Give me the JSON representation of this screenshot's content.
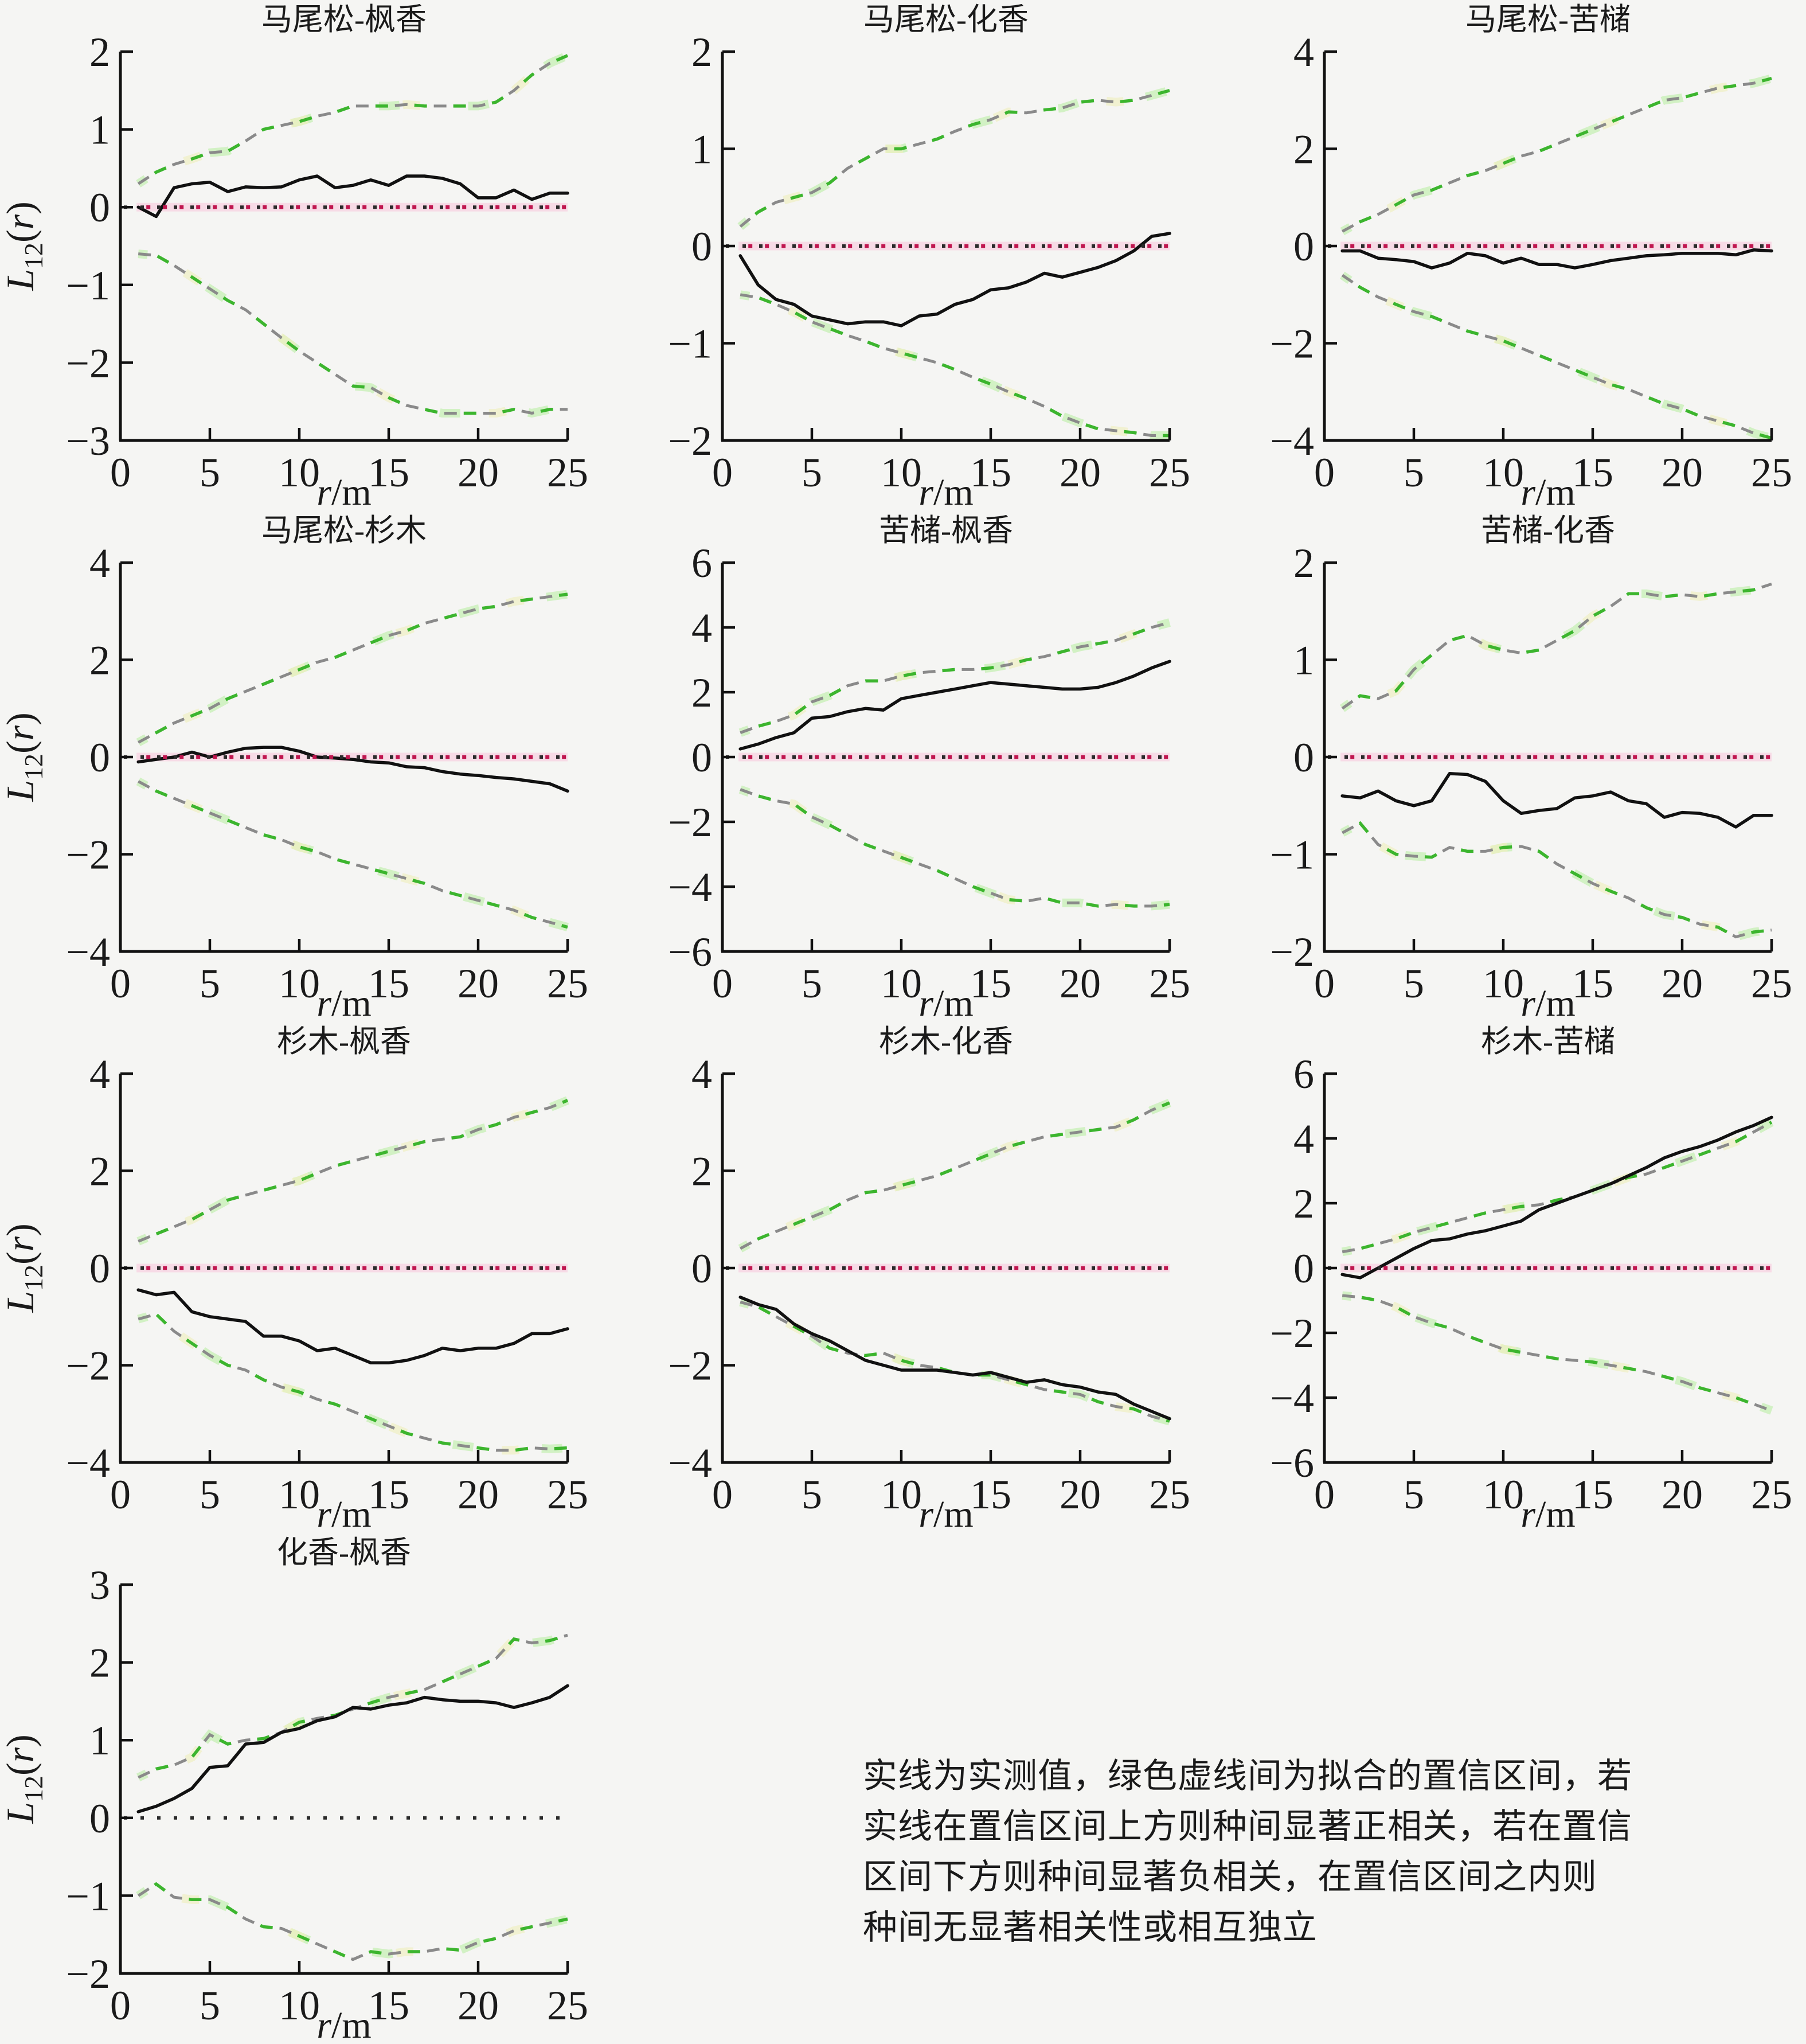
{
  "figure": {
    "kind": "ripley-L12-species-association-grid",
    "background": "#f5f5f3"
  },
  "colors": {
    "axis": "#111111",
    "observed_line": "#111111",
    "envelope_gray": "#8a8a8a",
    "envelope_green": "#3cb52e",
    "envelope_glow_green": "#c6efb4",
    "envelope_glow_yellow": "#efefc2",
    "zero_dot_black": "#2b2b2b",
    "zero_dot_red": "#c0164f",
    "zero_band_pink": "#f9c6dc",
    "text": "#1a1a1a"
  },
  "axes_common": {
    "x": [
      1,
      2,
      3,
      4,
      5,
      6,
      7,
      8,
      9,
      10,
      11,
      12,
      13,
      14,
      15,
      16,
      17,
      18,
      19,
      20,
      21,
      22,
      23,
      24,
      25
    ],
    "xlim": [
      0,
      25
    ],
    "xticks": [
      0,
      5,
      10,
      15,
      20,
      25
    ],
    "xlabel_var": "r",
    "xlabel_rest": "/m",
    "ylabel_main": "L",
    "ylabel_sub": "12",
    "ylabel_open": "(",
    "ylabel_var": "r",
    "ylabel_close": ")",
    "grid": false,
    "legend": "none"
  },
  "chart_data": [
    {
      "type": "line",
      "title": "马尾松-枫香",
      "ylim": [
        -3,
        2
      ],
      "yticks": [
        -3,
        -2,
        -1,
        0,
        1,
        2
      ],
      "red_zero_line": true,
      "show_ylabel": true,
      "series": {
        "observed": [
          0,
          -0.12,
          0.25,
          0.3,
          0.32,
          0.2,
          0.26,
          0.25,
          0.26,
          0.35,
          0.4,
          0.25,
          0.28,
          0.35,
          0.28,
          0.4,
          0.4,
          0.37,
          0.3,
          0.12,
          0.12,
          0.22,
          0.1,
          0.18,
          0.18
        ],
        "upper": [
          0.3,
          0.45,
          0.55,
          0.62,
          0.7,
          0.72,
          0.85,
          1.0,
          1.05,
          1.1,
          1.17,
          1.22,
          1.3,
          1.3,
          1.3,
          1.32,
          1.3,
          1.3,
          1.3,
          1.3,
          1.35,
          1.5,
          1.7,
          1.85,
          1.95
        ],
        "lower": [
          -0.6,
          -0.62,
          -0.75,
          -0.9,
          -1.05,
          -1.2,
          -1.32,
          -1.5,
          -1.68,
          -1.85,
          -2.0,
          -2.15,
          -2.3,
          -2.32,
          -2.45,
          -2.55,
          -2.6,
          -2.65,
          -2.65,
          -2.65,
          -2.65,
          -2.6,
          -2.65,
          -2.6,
          -2.6
        ]
      }
    },
    {
      "type": "line",
      "title": "马尾松-化香",
      "ylim": [
        -2,
        2
      ],
      "yticks": [
        -2,
        -1,
        0,
        1,
        2
      ],
      "red_zero_line": true,
      "show_ylabel": false,
      "series": {
        "observed": [
          -0.1,
          -0.4,
          -0.55,
          -0.6,
          -0.72,
          -0.76,
          -0.8,
          -0.78,
          -0.78,
          -0.82,
          -0.72,
          -0.7,
          -0.6,
          -0.55,
          -0.45,
          -0.43,
          -0.37,
          -0.28,
          -0.32,
          -0.27,
          -0.22,
          -0.15,
          -0.05,
          0.1,
          0.13
        ],
        "upper": [
          0.2,
          0.35,
          0.45,
          0.5,
          0.55,
          0.65,
          0.8,
          0.9,
          1.0,
          1.0,
          1.05,
          1.1,
          1.18,
          1.25,
          1.3,
          1.38,
          1.37,
          1.4,
          1.42,
          1.48,
          1.5,
          1.48,
          1.5,
          1.55,
          1.6
        ],
        "lower": [
          -0.5,
          -0.53,
          -0.6,
          -0.68,
          -0.78,
          -0.85,
          -0.92,
          -0.98,
          -1.05,
          -1.1,
          -1.15,
          -1.2,
          -1.27,
          -1.35,
          -1.42,
          -1.5,
          -1.57,
          -1.65,
          -1.75,
          -1.82,
          -1.88,
          -1.9,
          -1.92,
          -1.95,
          -1.95
        ]
      }
    },
    {
      "type": "line",
      "title": "马尾松-苦槠",
      "ylim": [
        -4,
        4
      ],
      "yticks": [
        -4,
        -2,
        0,
        2,
        4
      ],
      "red_zero_line": true,
      "show_ylabel": false,
      "series": {
        "observed": [
          -0.1,
          -0.1,
          -0.25,
          -0.28,
          -0.32,
          -0.45,
          -0.35,
          -0.15,
          -0.2,
          -0.35,
          -0.25,
          -0.38,
          -0.38,
          -0.45,
          -0.38,
          -0.3,
          -0.25,
          -0.2,
          -0.18,
          -0.15,
          -0.15,
          -0.15,
          -0.18,
          -0.08,
          -0.1
        ],
        "upper": [
          0.3,
          0.5,
          0.65,
          0.85,
          1.05,
          1.15,
          1.3,
          1.45,
          1.55,
          1.7,
          1.85,
          1.95,
          2.1,
          2.25,
          2.4,
          2.55,
          2.7,
          2.85,
          3.0,
          3.05,
          3.15,
          3.25,
          3.3,
          3.35,
          3.45
        ],
        "lower": [
          -0.6,
          -0.85,
          -1.05,
          -1.2,
          -1.35,
          -1.45,
          -1.6,
          -1.75,
          -1.85,
          -1.95,
          -2.1,
          -2.25,
          -2.4,
          -2.55,
          -2.7,
          -2.85,
          -2.95,
          -3.1,
          -3.25,
          -3.35,
          -3.5,
          -3.6,
          -3.7,
          -3.85,
          -3.95
        ]
      }
    },
    {
      "type": "line",
      "title": "马尾松-杉木",
      "ylim": [
        -4,
        4
      ],
      "yticks": [
        -4,
        -2,
        0,
        2,
        4
      ],
      "red_zero_line": true,
      "show_ylabel": true,
      "series": {
        "observed": [
          -0.1,
          -0.05,
          0,
          0.1,
          0,
          0.1,
          0.18,
          0.2,
          0.2,
          0.12,
          0,
          -0.02,
          -0.05,
          -0.1,
          -0.12,
          -0.2,
          -0.22,
          -0.3,
          -0.35,
          -0.38,
          -0.42,
          -0.45,
          -0.5,
          -0.55,
          -0.7
        ],
        "upper": [
          0.3,
          0.5,
          0.7,
          0.85,
          1.0,
          1.2,
          1.35,
          1.5,
          1.65,
          1.8,
          1.95,
          2.05,
          2.2,
          2.35,
          2.5,
          2.6,
          2.75,
          2.85,
          2.95,
          3.05,
          3.1,
          3.2,
          3.25,
          3.3,
          3.35
        ],
        "lower": [
          -0.5,
          -0.7,
          -0.85,
          -1.0,
          -1.15,
          -1.3,
          -1.45,
          -1.6,
          -1.7,
          -1.85,
          -1.95,
          -2.1,
          -2.2,
          -2.3,
          -2.4,
          -2.5,
          -2.6,
          -2.75,
          -2.85,
          -2.95,
          -3.05,
          -3.15,
          -3.3,
          -3.4,
          -3.5
        ]
      }
    },
    {
      "type": "line",
      "title": "苦槠-枫香",
      "ylim": [
        -6,
        6
      ],
      "yticks": [
        -6,
        -4,
        -2,
        0,
        2,
        4,
        6
      ],
      "red_zero_line": true,
      "show_ylabel": false,
      "series": {
        "observed": [
          0.25,
          0.4,
          0.6,
          0.75,
          1.2,
          1.25,
          1.4,
          1.5,
          1.45,
          1.8,
          1.9,
          2.0,
          2.1,
          2.2,
          2.3,
          2.25,
          2.2,
          2.15,
          2.1,
          2.1,
          2.15,
          2.3,
          2.5,
          2.75,
          2.95
        ],
        "upper": [
          0.75,
          0.95,
          1.1,
          1.3,
          1.7,
          1.9,
          2.2,
          2.35,
          2.35,
          2.5,
          2.6,
          2.65,
          2.7,
          2.7,
          2.75,
          2.85,
          3.0,
          3.1,
          3.25,
          3.4,
          3.5,
          3.6,
          3.8,
          4.0,
          4.15
        ],
        "lower": [
          -1.0,
          -1.2,
          -1.35,
          -1.45,
          -1.85,
          -2.1,
          -2.4,
          -2.7,
          -2.9,
          -3.1,
          -3.3,
          -3.5,
          -3.75,
          -4.0,
          -4.2,
          -4.4,
          -4.45,
          -4.35,
          -4.5,
          -4.5,
          -4.6,
          -4.55,
          -4.6,
          -4.6,
          -4.55
        ]
      }
    },
    {
      "type": "line",
      "title": "苦槠-化香",
      "ylim": [
        -2,
        2
      ],
      "yticks": [
        -2,
        -1,
        0,
        1,
        2
      ],
      "red_zero_line": true,
      "show_ylabel": false,
      "series": {
        "observed": [
          -0.4,
          -0.42,
          -0.35,
          -0.45,
          -0.5,
          -0.45,
          -0.17,
          -0.18,
          -0.25,
          -0.45,
          -0.58,
          -0.55,
          -0.53,
          -0.42,
          -0.4,
          -0.36,
          -0.45,
          -0.48,
          -0.62,
          -0.57,
          -0.58,
          -0.62,
          -0.72,
          -0.6,
          -0.6
        ],
        "upper": [
          0.5,
          0.63,
          0.6,
          0.68,
          0.9,
          1.05,
          1.2,
          1.25,
          1.15,
          1.1,
          1.07,
          1.1,
          1.2,
          1.3,
          1.45,
          1.55,
          1.68,
          1.68,
          1.65,
          1.67,
          1.65,
          1.68,
          1.7,
          1.72,
          1.78
        ],
        "lower": [
          -0.78,
          -0.68,
          -0.9,
          -1.0,
          -1.02,
          -1.03,
          -0.93,
          -0.97,
          -0.97,
          -0.93,
          -0.92,
          -0.97,
          -1.1,
          -1.2,
          -1.3,
          -1.38,
          -1.45,
          -1.55,
          -1.62,
          -1.65,
          -1.72,
          -1.75,
          -1.85,
          -1.8,
          -1.78
        ]
      }
    },
    {
      "type": "line",
      "title": "杉木-枫香",
      "ylim": [
        -4,
        4
      ],
      "yticks": [
        -4,
        -2,
        0,
        2,
        4
      ],
      "red_zero_line": true,
      "show_ylabel": true,
      "series": {
        "observed": [
          -0.45,
          -0.55,
          -0.5,
          -0.9,
          -1.0,
          -1.05,
          -1.1,
          -1.4,
          -1.4,
          -1.5,
          -1.7,
          -1.65,
          -1.8,
          -1.95,
          -1.95,
          -1.9,
          -1.8,
          -1.65,
          -1.7,
          -1.65,
          -1.65,
          -1.55,
          -1.35,
          -1.35,
          -1.25
        ],
        "upper": [
          0.55,
          0.7,
          0.85,
          1.0,
          1.2,
          1.4,
          1.5,
          1.6,
          1.7,
          1.8,
          1.95,
          2.1,
          2.2,
          2.3,
          2.4,
          2.5,
          2.6,
          2.65,
          2.7,
          2.85,
          2.95,
          3.1,
          3.2,
          3.3,
          3.45
        ],
        "lower": [
          -1.05,
          -0.95,
          -1.3,
          -1.55,
          -1.8,
          -2.0,
          -2.1,
          -2.3,
          -2.45,
          -2.55,
          -2.7,
          -2.8,
          -2.95,
          -3.1,
          -3.25,
          -3.4,
          -3.5,
          -3.6,
          -3.65,
          -3.7,
          -3.75,
          -3.75,
          -3.7,
          -3.72,
          -3.7
        ]
      }
    },
    {
      "type": "line",
      "title": "杉木-化香",
      "ylim": [
        -4,
        4
      ],
      "yticks": [
        -4,
        -2,
        0,
        2,
        4
      ],
      "red_zero_line": true,
      "show_ylabel": false,
      "series": {
        "observed": [
          -0.6,
          -0.75,
          -0.85,
          -1.15,
          -1.35,
          -1.5,
          -1.7,
          -1.9,
          -2.0,
          -2.1,
          -2.1,
          -2.1,
          -2.15,
          -2.2,
          -2.15,
          -2.25,
          -2.35,
          -2.3,
          -2.4,
          -2.45,
          -2.55,
          -2.6,
          -2.8,
          -2.95,
          -3.1
        ],
        "upper": [
          0.4,
          0.6,
          0.75,
          0.9,
          1.05,
          1.2,
          1.4,
          1.55,
          1.6,
          1.7,
          1.8,
          1.9,
          2.05,
          2.2,
          2.35,
          2.5,
          2.6,
          2.7,
          2.75,
          2.8,
          2.85,
          2.9,
          3.05,
          3.25,
          3.4
        ],
        "lower": [
          -0.7,
          -0.8,
          -1.0,
          -1.2,
          -1.4,
          -1.65,
          -1.75,
          -1.8,
          -1.75,
          -1.9,
          -2.0,
          -2.05,
          -2.15,
          -2.2,
          -2.2,
          -2.3,
          -2.4,
          -2.5,
          -2.55,
          -2.6,
          -2.75,
          -2.85,
          -2.9,
          -3.05,
          -3.15
        ]
      }
    },
    {
      "type": "line",
      "title": "杉木-苦槠",
      "ylim": [
        -6,
        6
      ],
      "yticks": [
        -6,
        -4,
        -2,
        0,
        2,
        4,
        6
      ],
      "red_zero_line": true,
      "show_ylabel": false,
      "series": {
        "observed": [
          -0.2,
          -0.3,
          0,
          0.3,
          0.6,
          0.85,
          0.9,
          1.05,
          1.15,
          1.3,
          1.45,
          1.8,
          2.0,
          2.2,
          2.4,
          2.6,
          2.85,
          3.1,
          3.4,
          3.6,
          3.75,
          3.95,
          4.2,
          4.4,
          4.65
        ],
        "upper": [
          0.5,
          0.6,
          0.75,
          0.9,
          1.1,
          1.25,
          1.4,
          1.55,
          1.7,
          1.8,
          1.9,
          1.95,
          2.1,
          2.2,
          2.4,
          2.6,
          2.8,
          2.9,
          3.1,
          3.3,
          3.5,
          3.7,
          3.9,
          4.2,
          4.5
        ],
        "lower": [
          -0.85,
          -0.9,
          -1.0,
          -1.2,
          -1.5,
          -1.7,
          -1.85,
          -2.1,
          -2.3,
          -2.5,
          -2.6,
          -2.7,
          -2.8,
          -2.85,
          -2.9,
          -3.0,
          -3.1,
          -3.2,
          -3.35,
          -3.5,
          -3.7,
          -3.85,
          -4.0,
          -4.2,
          -4.4
        ]
      }
    },
    {
      "type": "line",
      "title": "化香-枫香",
      "ylim": [
        -2,
        3
      ],
      "yticks": [
        -2,
        -1,
        0,
        1,
        2,
        3
      ],
      "red_zero_line": false,
      "show_ylabel": true,
      "series": {
        "observed": [
          0.08,
          0.15,
          0.25,
          0.38,
          0.65,
          0.67,
          0.95,
          0.97,
          1.1,
          1.15,
          1.25,
          1.3,
          1.42,
          1.4,
          1.45,
          1.48,
          1.55,
          1.52,
          1.5,
          1.5,
          1.48,
          1.42,
          1.48,
          1.55,
          1.7
        ],
        "upper": [
          0.52,
          0.63,
          0.68,
          0.78,
          1.07,
          0.95,
          1.0,
          1.02,
          1.1,
          1.23,
          1.28,
          1.32,
          1.4,
          1.48,
          1.55,
          1.6,
          1.65,
          1.75,
          1.85,
          1.95,
          2.05,
          2.3,
          2.25,
          2.28,
          2.35
        ],
        "lower": [
          -1.0,
          -0.85,
          -1.02,
          -1.05,
          -1.05,
          -1.15,
          -1.3,
          -1.4,
          -1.42,
          -1.52,
          -1.62,
          -1.72,
          -1.82,
          -1.72,
          -1.75,
          -1.72,
          -1.72,
          -1.68,
          -1.7,
          -1.6,
          -1.55,
          -1.45,
          -1.4,
          -1.35,
          -1.3
        ]
      }
    }
  ],
  "annotation": {
    "lines": [
      "实线为实测值，绿色虚线间为拟合的置信区间，若",
      "实线在置信区间上方则种间显著正相关，若在置信",
      "区间下方则种间显著负相关，在置信区间之内则",
      "种间无显著相关性或相互独立"
    ]
  }
}
